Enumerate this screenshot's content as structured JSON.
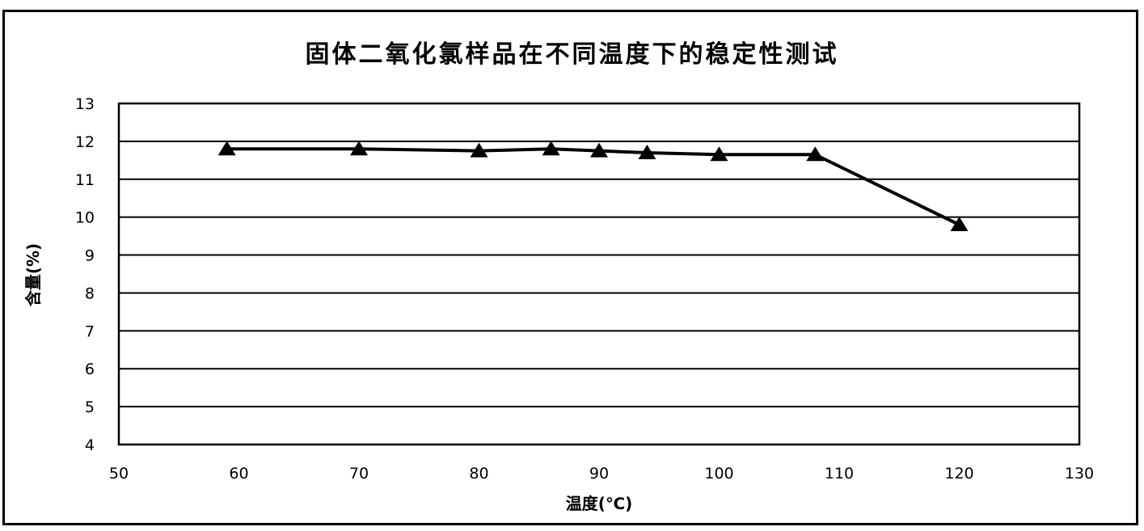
{
  "chart_data": {
    "type": "line",
    "title": "固体二氧化氯样品在不同温度下的稳定性测试",
    "xlabel": "温度(℃)",
    "ylabel": "含量(%)",
    "xlim": [
      50,
      130
    ],
    "ylim": [
      4,
      13
    ],
    "xticks": [
      50,
      60,
      70,
      80,
      90,
      100,
      110,
      120,
      130
    ],
    "yticks": [
      4,
      5,
      6,
      7,
      8,
      9,
      10,
      11,
      12,
      13
    ],
    "grid": "horizontal",
    "marker": "triangle",
    "color": "#000000",
    "series": [
      {
        "x": [
          59,
          70,
          80,
          86,
          90,
          94,
          100,
          108,
          120
        ],
        "y": [
          11.8,
          11.8,
          11.75,
          11.8,
          11.75,
          11.7,
          11.65,
          11.65,
          9.8
        ]
      }
    ]
  }
}
